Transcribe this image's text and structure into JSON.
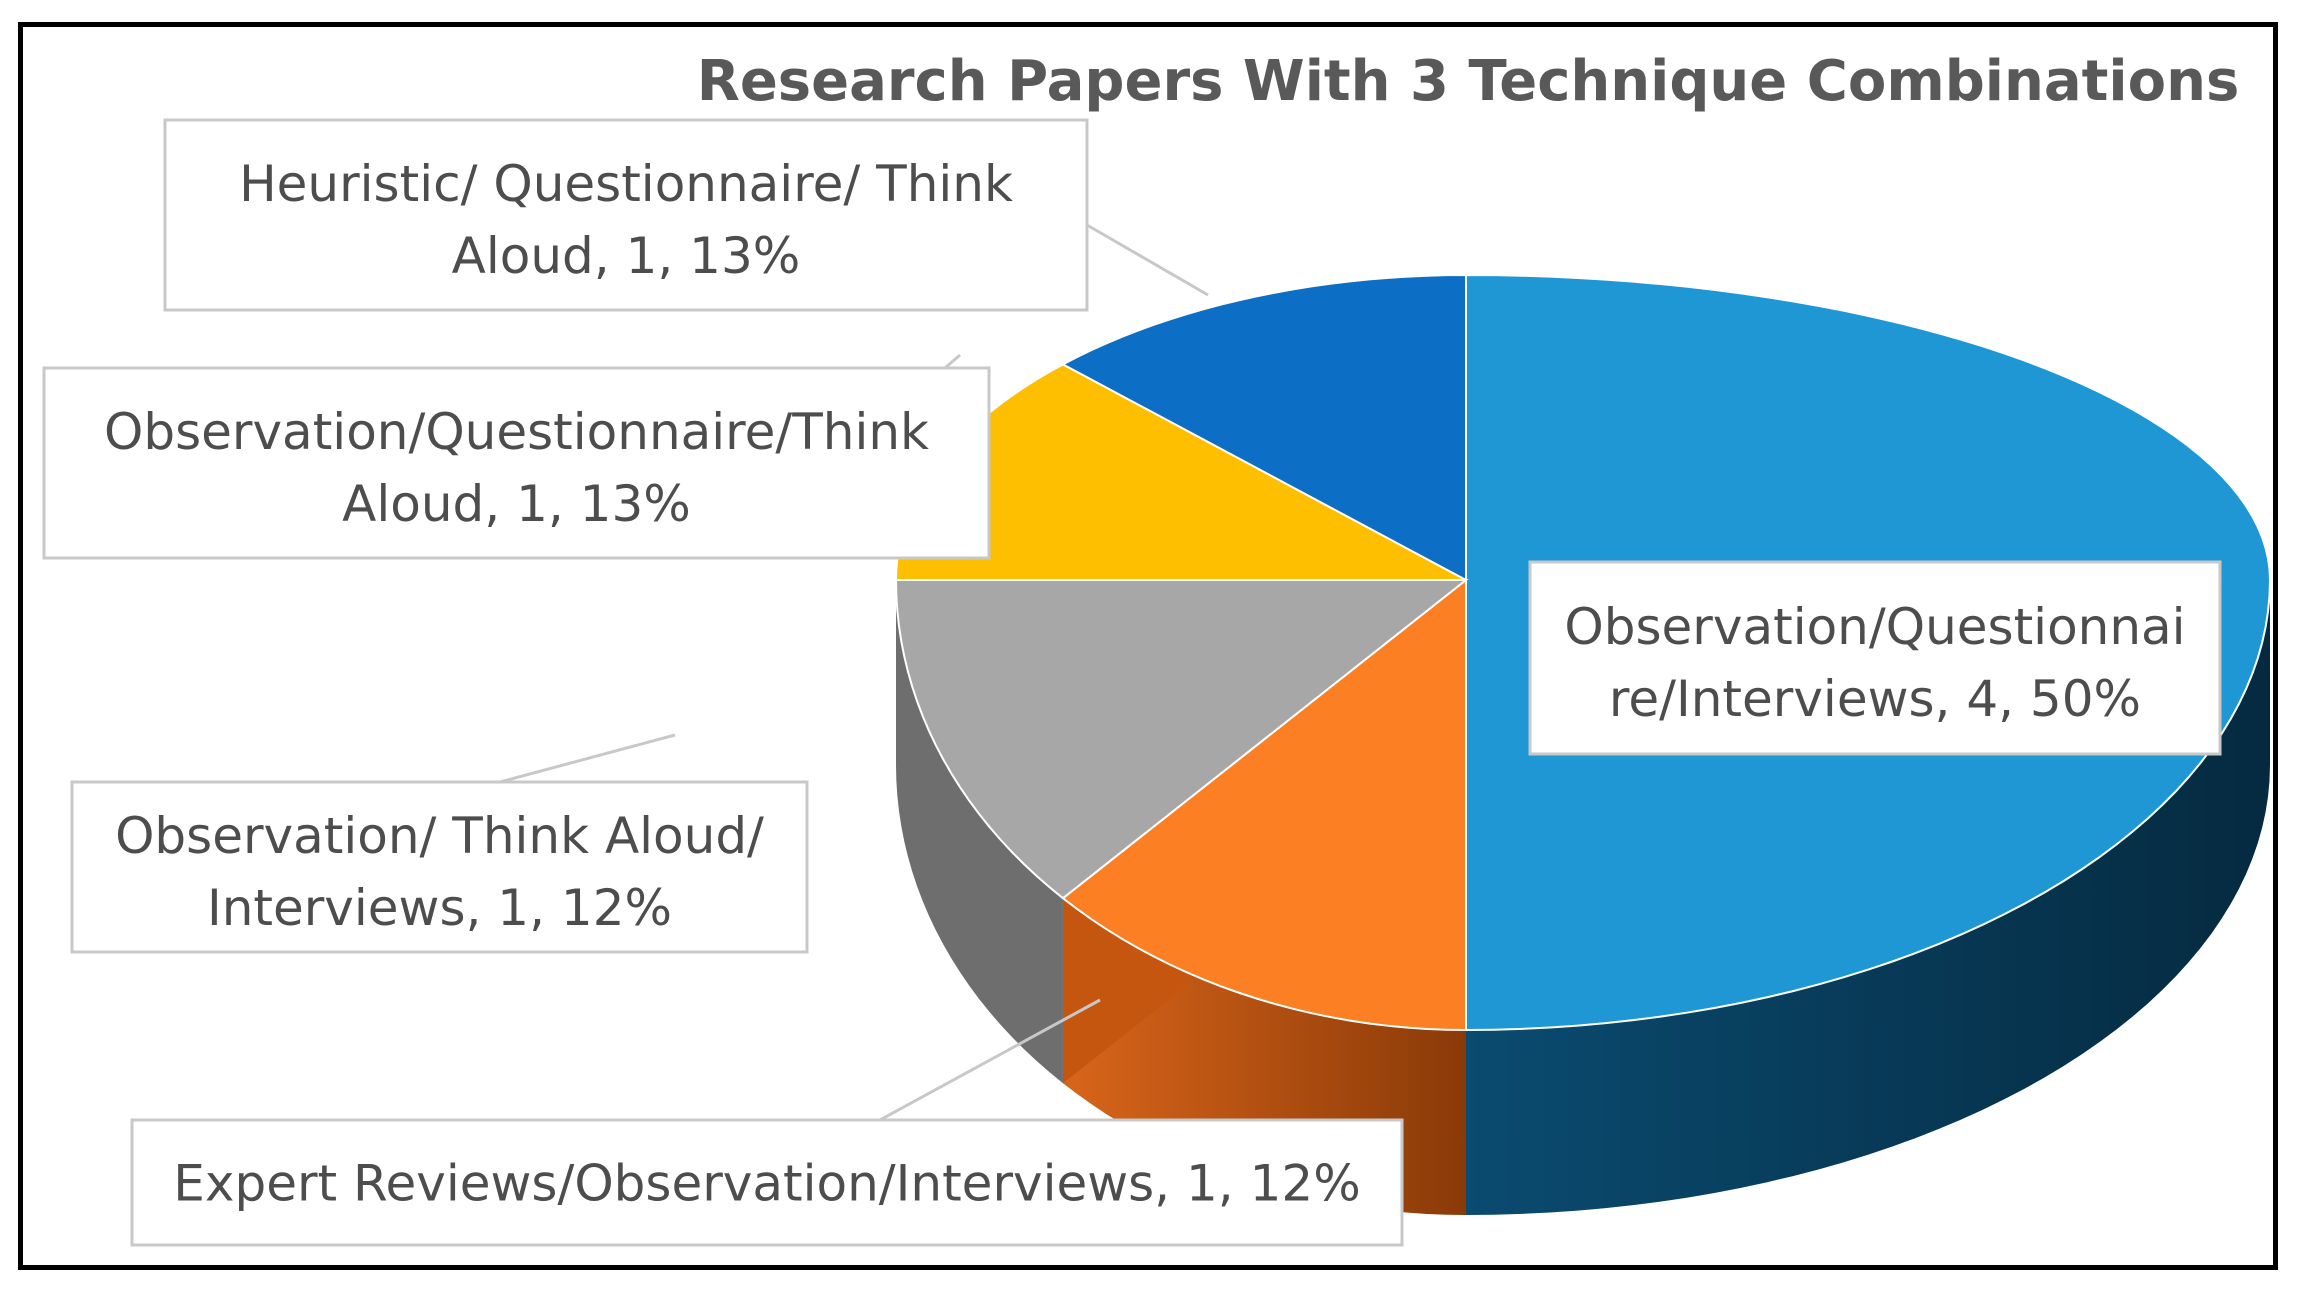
{
  "chart_data": {
    "type": "pie",
    "style": "3d-exploded",
    "title": "Research Papers With 3 Technique Combinations",
    "slices": [
      {
        "label_line1": "Observation/Questionnai",
        "label_line2": "re/Interviews, 4, 50%",
        "value": 4,
        "percent": "50%",
        "color": "#1F97D4",
        "side_color": "#073A57"
      },
      {
        "label_line1": "Expert Reviews/Observation/Interviews, 1, 12%",
        "label_line2": "",
        "value": 1,
        "percent": "12%",
        "color": "#FD7F23",
        "side_color": "#B9520F"
      },
      {
        "label_line1": "Observation/ Think Aloud/",
        "label_line2": "Interviews, 1, 12%",
        "value": 1,
        "percent": "12%",
        "color": "#A7A7A7",
        "side_color": "#6E6E6E"
      },
      {
        "label_line1": "Observation/Questionnaire/Think",
        "label_line2": "Aloud, 1, 13%",
        "value": 1,
        "percent": "13%",
        "color": "#FDBF00",
        "side_color": "#A67C00"
      },
      {
        "label_line1": "Heuristic/ Questionnaire/ Think",
        "label_line2": "Aloud, 1, 13%",
        "value": 1,
        "percent": "13%",
        "color": "#0C6EC4",
        "side_color": "#06396A"
      }
    ],
    "legend": "none"
  }
}
